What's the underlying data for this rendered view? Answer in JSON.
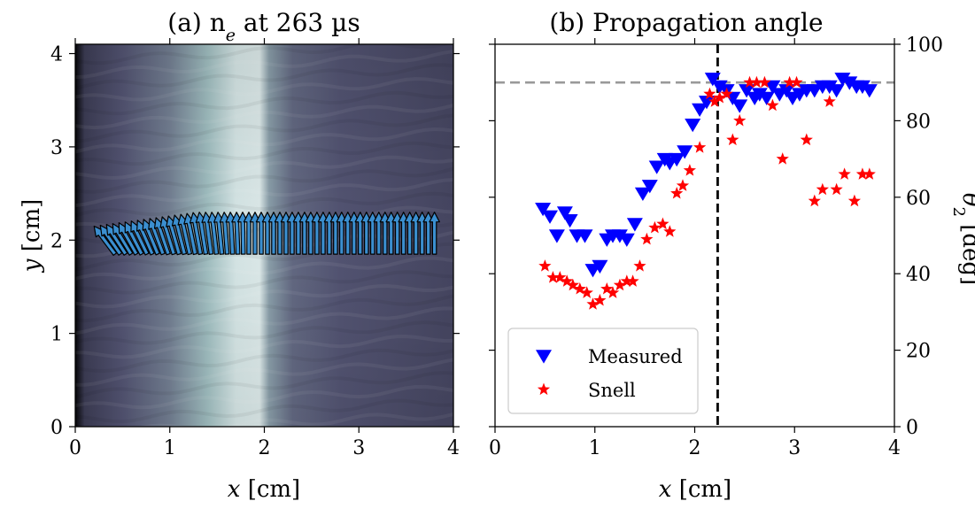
{
  "figure": {
    "left": {
      "title": "(a) n",
      "title_sub": "e",
      "title_tail": " at 263 µs",
      "xlabel_var": "x",
      "xlabel_unit": " [cm]",
      "ylabel_var": "y",
      "ylabel_unit": " [cm]"
    },
    "right": {
      "title": "(b) Propagation angle",
      "xlabel_var": "x",
      "xlabel_unit": " [cm]",
      "ylabel_var": "θ",
      "ylabel_sub": "2",
      "ylabel_unit": " [deg]"
    }
  },
  "chart_data": [
    {
      "type": "heatmap",
      "title": "(a) n_e at 263 µs",
      "xlabel": "x [cm]",
      "ylabel": "y [cm]",
      "xlim": [
        0,
        4
      ],
      "ylim": [
        0,
        4.1
      ],
      "xticks": [
        "0",
        "1",
        "2",
        "3",
        "4"
      ],
      "yticks": [
        "0",
        "1",
        "2",
        "3",
        "4"
      ],
      "colormap": "bone",
      "density_profile": {
        "x": [
          0,
          0.1,
          0.5,
          1.0,
          1.4,
          1.7,
          1.95,
          2.05,
          2.3,
          2.8,
          4.0
        ],
        "level": [
          0.03,
          0.28,
          0.38,
          0.52,
          0.72,
          0.88,
          0.9,
          0.62,
          0.45,
          0.38,
          0.32
        ]
      },
      "arrows": {
        "base_y": 1.85,
        "tip_y_range": [
          2.15,
          2.3
        ],
        "x_range": [
          0.2,
          3.8
        ],
        "count": 56,
        "color": "#3b8fd0"
      }
    },
    {
      "type": "scatter",
      "title": "(b) Propagation angle",
      "xlabel": "x [cm]",
      "ylabel": "θ2 [deg]",
      "xlim": [
        0,
        4
      ],
      "ylim": [
        0,
        100
      ],
      "xticks": [
        "0",
        "1",
        "2",
        "3",
        "4"
      ],
      "yticks": [
        "0",
        "20",
        "40",
        "60",
        "80",
        "100"
      ],
      "legend_position": "lower-left",
      "hlines": [
        {
          "y": 90,
          "style": "dashed",
          "color": "#999999"
        }
      ],
      "vlines": [
        {
          "x": 2.23,
          "style": "dashed",
          "color": "#000000"
        }
      ],
      "series": [
        {
          "name": "Measured",
          "marker": "triangle-down",
          "color": "#0000ff",
          "points": [
            [
              0.48,
              57
            ],
            [
              0.55,
              55
            ],
            [
              0.62,
              50
            ],
            [
              0.7,
              56
            ],
            [
              0.75,
              54
            ],
            [
              0.82,
              50
            ],
            [
              0.9,
              50
            ],
            [
              0.98,
              41
            ],
            [
              1.05,
              42
            ],
            [
              1.12,
              49
            ],
            [
              1.18,
              50
            ],
            [
              1.25,
              50
            ],
            [
              1.32,
              49
            ],
            [
              1.4,
              53
            ],
            [
              1.48,
              61
            ],
            [
              1.55,
              63
            ],
            [
              1.62,
              68
            ],
            [
              1.7,
              70
            ],
            [
              1.75,
              69
            ],
            [
              1.82,
              70
            ],
            [
              1.9,
              72
            ],
            [
              1.98,
              79
            ],
            [
              2.05,
              83
            ],
            [
              2.12,
              85
            ],
            [
              2.18,
              91
            ],
            [
              2.25,
              89
            ],
            [
              2.32,
              88
            ],
            [
              2.38,
              86
            ],
            [
              2.45,
              84
            ],
            [
              2.52,
              88
            ],
            [
              2.6,
              86
            ],
            [
              2.65,
              87
            ],
            [
              2.72,
              86
            ],
            [
              2.78,
              89
            ],
            [
              2.85,
              87
            ],
            [
              2.92,
              88
            ],
            [
              2.98,
              86
            ],
            [
              3.05,
              87
            ],
            [
              3.12,
              88
            ],
            [
              3.2,
              88
            ],
            [
              3.28,
              89
            ],
            [
              3.35,
              89
            ],
            [
              3.42,
              88
            ],
            [
              3.48,
              91
            ],
            [
              3.55,
              90
            ],
            [
              3.62,
              89
            ],
            [
              3.68,
              89
            ],
            [
              3.75,
              88
            ]
          ]
        },
        {
          "name": "Snell",
          "marker": "star",
          "color": "#ff0000",
          "points": [
            [
              0.5,
              42
            ],
            [
              0.58,
              39
            ],
            [
              0.65,
              39
            ],
            [
              0.72,
              38
            ],
            [
              0.78,
              37
            ],
            [
              0.85,
              36
            ],
            [
              0.92,
              35
            ],
            [
              0.98,
              32
            ],
            [
              1.05,
              33
            ],
            [
              1.12,
              36
            ],
            [
              1.18,
              35
            ],
            [
              1.25,
              37
            ],
            [
              1.32,
              38
            ],
            [
              1.38,
              38
            ],
            [
              1.45,
              42
            ],
            [
              1.52,
              49
            ],
            [
              1.6,
              52
            ],
            [
              1.68,
              53
            ],
            [
              1.75,
              51
            ],
            [
              1.82,
              61
            ],
            [
              1.88,
              63
            ],
            [
              1.95,
              67
            ],
            [
              2.05,
              73
            ],
            [
              2.15,
              87
            ],
            [
              2.2,
              85
            ],
            [
              2.25,
              86
            ],
            [
              2.32,
              87
            ],
            [
              2.38,
              75
            ],
            [
              2.45,
              80
            ],
            [
              2.55,
              90
            ],
            [
              2.62,
              90
            ],
            [
              2.7,
              90
            ],
            [
              2.78,
              84
            ],
            [
              2.88,
              70
            ],
            [
              2.95,
              90
            ],
            [
              3.02,
              90
            ],
            [
              3.12,
              75
            ],
            [
              3.2,
              59
            ],
            [
              3.28,
              62
            ],
            [
              3.35,
              85
            ],
            [
              3.42,
              62
            ],
            [
              3.5,
              66
            ],
            [
              3.6,
              59
            ],
            [
              3.68,
              66
            ],
            [
              3.75,
              66
            ]
          ]
        }
      ]
    }
  ]
}
